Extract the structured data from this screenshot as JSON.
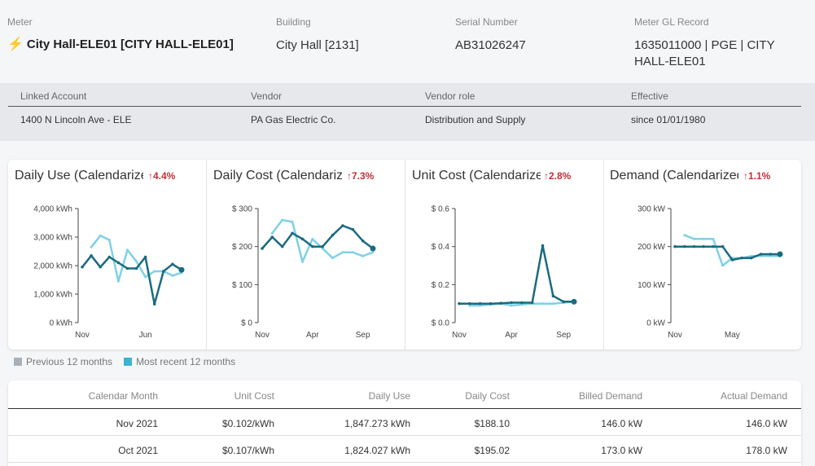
{
  "meter": {
    "fields": [
      {
        "label": "Meter",
        "value": "City Hall-ELE01 [CITY HALL-ELE01]"
      },
      {
        "label": "Building",
        "value": "City Hall [2131]"
      },
      {
        "label": "Serial Number",
        "value": "AB31026247"
      },
      {
        "label": "Meter GL Record",
        "value": "1635011000 | PGE | CITY HALL-ELE01"
      }
    ]
  },
  "linked": {
    "headers": [
      "Linked Account",
      "Vendor",
      "Vendor role",
      "Effective"
    ],
    "values": [
      "1400 N Lincoln Ave - ELE",
      "PA Gas Electric Co.",
      "Distribution and Supply",
      "since 01/01/1980"
    ]
  },
  "colors": {
    "previous": "#7fd1e6",
    "recent": "#1a6b80",
    "delta": "#c0303a",
    "legend_prev": "#a8b1b8",
    "legend_recent": "#3bb3d3"
  },
  "cards": [
    {
      "title": "Daily Use (Calendarized)",
      "delta": "↑4.4%"
    },
    {
      "title": "Daily Cost (Calendarized)",
      "delta": "↑7.3%"
    },
    {
      "title": "Unit Cost (Calendarized)",
      "delta": "↑2.8%"
    },
    {
      "title": "Demand (Calendarized)",
      "delta": "↑1.1%"
    }
  ],
  "chart_data": [
    {
      "type": "line",
      "title": "Daily Use (Calendarized)",
      "yticks": [
        "0 kWh",
        "1,000 kWh",
        "2,000 kWh",
        "3,000 kWh",
        "4,000 kWh"
      ],
      "ylim": [
        0,
        4000
      ],
      "xticks": [
        {
          "label": "Nov",
          "i": 0
        },
        {
          "label": "Jun",
          "i": 7
        }
      ],
      "series": [
        {
          "name": "Previous 12 months",
          "values": [
            null,
            2650,
            3050,
            2900,
            1450,
            2550,
            2150,
            1600,
            1800,
            1800,
            1650,
            1750
          ]
        },
        {
          "name": "Most recent 12 months",
          "values": [
            1950,
            2350,
            1950,
            2300,
            2100,
            1900,
            1900,
            2300,
            650,
            1800,
            2050,
            1850
          ]
        }
      ]
    },
    {
      "type": "line",
      "title": "Daily Cost (Calendarized)",
      "yticks": [
        "$ 0",
        "$ 100",
        "$ 200",
        "$ 300"
      ],
      "ylim": [
        0,
        300
      ],
      "xticks": [
        {
          "label": "Nov",
          "i": 0
        },
        {
          "label": "Apr",
          "i": 5
        },
        {
          "label": "Sep",
          "i": 10
        }
      ],
      "series": [
        {
          "name": "Previous 12 months",
          "values": [
            null,
            235,
            270,
            265,
            160,
            220,
            195,
            170,
            185,
            185,
            175,
            185
          ]
        },
        {
          "name": "Most recent 12 months",
          "values": [
            195,
            225,
            200,
            235,
            220,
            200,
            200,
            230,
            255,
            245,
            215,
            195
          ]
        }
      ]
    },
    {
      "type": "line",
      "title": "Unit Cost (Calendarized)",
      "yticks": [
        "$ 0.0",
        "$ 0.2",
        "$ 0.4",
        "$ 0.6"
      ],
      "ylim": [
        0,
        0.6
      ],
      "xticks": [
        {
          "label": "Nov",
          "i": 0
        },
        {
          "label": "Apr",
          "i": 5
        },
        {
          "label": "Sep",
          "i": 10
        }
      ],
      "series": [
        {
          "name": "Previous 12 months",
          "values": [
            null,
            0.09,
            0.09,
            0.095,
            0.1,
            0.09,
            0.095,
            0.1,
            0.1,
            0.1,
            0.105,
            0.11
          ]
        },
        {
          "name": "Most recent 12 months",
          "values": [
            0.1,
            0.1,
            0.1,
            0.1,
            0.102,
            0.105,
            0.105,
            0.105,
            0.405,
            0.14,
            0.11,
            0.11
          ]
        }
      ]
    },
    {
      "type": "line",
      "title": "Demand (Calendarized)",
      "yticks": [
        "0 kW",
        "100 kW",
        "200 kW",
        "300 kW"
      ],
      "ylim": [
        0,
        300
      ],
      "xticks": [
        {
          "label": "Nov",
          "i": 0
        },
        {
          "label": "May",
          "i": 6
        }
      ],
      "series": [
        {
          "name": "Previous 12 months",
          "values": [
            null,
            230,
            220,
            220,
            220,
            150,
            170,
            170,
            175,
            175,
            175,
            175
          ]
        },
        {
          "name": "Most recent 12 months",
          "values": [
            200,
            200,
            200,
            200,
            200,
            200,
            165,
            170,
            170,
            180,
            180,
            180
          ]
        }
      ]
    }
  ],
  "legend": [
    "Previous 12 months",
    "Most recent 12 months"
  ],
  "table": {
    "headers": [
      "Calendar Month",
      "Unit Cost",
      "Daily Use",
      "Daily Cost",
      "Billed Demand",
      "Actual Demand"
    ],
    "rows": [
      [
        "Nov 2021",
        "$0.102/kWh",
        "1,847.273 kWh",
        "$188.10",
        "146.0 kW",
        "146.0 kW"
      ],
      [
        "Oct 2021",
        "$0.107/kWh",
        "1,824.027 kWh",
        "$195.02",
        "173.0 kW",
        "178.0 kW"
      ]
    ]
  }
}
